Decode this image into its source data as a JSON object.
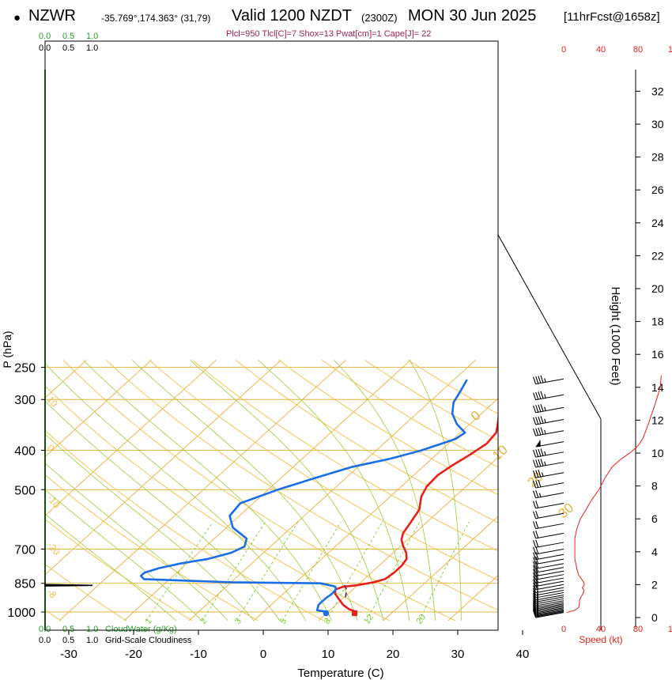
{
  "header": {
    "bullet": "●",
    "station": "NZWR",
    "coords": "-35.769°,174.363° (31,79)",
    "valid": "Valid 1200 NZDT",
    "utc": "(2300Z)",
    "date": "MON 30 Jun 2025",
    "forecast": "[11hrFcst@1658z]",
    "params": "Plcl=950 Tlcl[C]=7 Shox=13 Pwat[cm]=1 Cape[J]= 22"
  },
  "colors": {
    "isotherm": "#e9b13a",
    "dry_adiabat": "#f0c040",
    "moist_adiabat": "#a8d04a",
    "mixing_ratio": "#7ccc30",
    "temperature": "#e8201a",
    "dewpoint": "#1a6ee8",
    "parcel": "#701850",
    "wind": "#000000",
    "speed": "#e8201a",
    "cloud": "#2aa02a",
    "params": "#a0205a"
  },
  "chart_data": {
    "type": "line",
    "title": "Valid 1200 NZDT (2300Z) MON 30 Jun 2025",
    "xlabel": "Temperature (C)",
    "ylabel": "P (hPa)",
    "xlim": [
      -34,
      36
    ],
    "x_ticks": [
      -30,
      -20,
      -10,
      0,
      10,
      20,
      30,
      40
    ],
    "x_tick_labels": [
      "-30",
      "-20",
      "-10",
      "0",
      "10",
      "20",
      "30",
      "40"
    ],
    "p_levels": [
      250,
      300,
      400,
      500,
      700,
      850,
      1000
    ],
    "p_tick_labels": [
      "250",
      "300",
      "400",
      "500",
      "700",
      "850",
      "1000"
    ],
    "height_axis": {
      "label": "Height (1000 Feet)",
      "ticks": [
        0,
        2,
        4,
        6,
        8,
        10,
        12,
        14,
        16,
        18,
        20,
        22,
        24,
        26,
        28,
        30,
        32
      ],
      "tick_labels": [
        "0",
        "2",
        "4",
        "6",
        "8",
        "10",
        "12",
        "14",
        "16",
        "18",
        "20",
        "22",
        "24",
        "26",
        "28",
        "30",
        "32"
      ]
    },
    "isotherm_temps": [
      -120,
      -110,
      -100,
      -90,
      -80,
      -70,
      -60,
      -50,
      -40,
      -30,
      -20,
      -10,
      0,
      10,
      20,
      30
    ],
    "isotherm_labels": [
      {
        "text": "0",
        "t": 0,
        "p": 340
      },
      {
        "text": "10",
        "t": 10,
        "p": 425
      },
      {
        "text": "20",
        "t": 20,
        "p": 495
      },
      {
        "text": "30",
        "t": 30,
        "p": 590
      }
    ],
    "dry_adiabat_thetas": [
      240,
      250,
      260,
      270,
      280,
      290,
      300,
      310,
      320,
      330,
      340,
      350,
      360,
      370,
      380
    ],
    "dry_adiabat_labels": [
      {
        "text": "10",
        "t": -33,
        "p": 300
      },
      {
        "text": "0",
        "t": -33,
        "p": 395
      },
      {
        "text": "-10",
        "t": -33,
        "p": 525
      },
      {
        "text": "-20",
        "t": -33,
        "p": 685
      },
      {
        "text": "-8",
        "t": -33,
        "p": 895
      }
    ],
    "moist_adiabat_thetas": [
      -12,
      -8,
      -4,
      0,
      4,
      8,
      12,
      16,
      20,
      24,
      28,
      32
    ],
    "mixing_ratios": [
      1,
      2,
      3,
      5,
      8,
      12,
      20
    ],
    "mixing_ratio_labels": [
      "1",
      "2",
      "3",
      "5",
      "8",
      "12",
      "20"
    ],
    "series": [
      {
        "name": "Temperature",
        "pressure": [
          1000,
          985,
          960,
          930,
          900,
          880,
          866,
          860,
          845,
          830,
          800,
          770,
          740,
          715,
          690,
          665,
          640,
          600,
          560,
          520,
          490,
          460,
          435,
          410,
          385,
          362,
          345,
          325,
          305,
          285,
          268
        ],
        "temperature": [
          14.5,
          12.8,
          11.1,
          9.5,
          7.9,
          7.3,
          8.1,
          9.8,
          12.0,
          13.2,
          13.5,
          13.5,
          13.1,
          12.0,
          10.5,
          9.1,
          8.2,
          7.5,
          6.7,
          4.8,
          3.9,
          3.7,
          4.3,
          5.2,
          5.9,
          5.5,
          4.3,
          2.7,
          0.9,
          -0.6,
          -0.7
        ]
      },
      {
        "name": "Dewpoint",
        "pressure": [
          1000,
          990,
          960,
          925,
          905,
          880,
          866,
          860,
          850,
          845,
          830,
          815,
          800,
          780,
          760,
          740,
          715,
          690,
          660,
          620,
          580,
          540,
          500,
          470,
          440,
          420,
          400,
          375,
          362,
          345,
          325,
          305,
          285,
          268
        ],
        "temperature": [
          10.0,
          8.0,
          7.3,
          7.3,
          7.5,
          7.4,
          6.8,
          5.8,
          4.0,
          -10.0,
          -24.0,
          -25.0,
          -25.0,
          -23.5,
          -21.0,
          -17.5,
          -15.0,
          -14.0,
          -15.0,
          -19.0,
          -21.5,
          -22.0,
          -18.5,
          -15.0,
          -11.0,
          -6.5,
          -3.0,
          0.3,
          0.7,
          -2.0,
          -4.5,
          -6.2,
          -7.1,
          -8.0
        ]
      },
      {
        "name": "Parcel",
        "pressure": [
          920,
          880,
          855
        ],
        "temperature": [
          10.2,
          9.0,
          7.8
        ]
      }
    ],
    "markers": [
      {
        "name": "surface-temperature-marker",
        "t": 14.3,
        "p": 1007,
        "shape": "square"
      },
      {
        "name": "surface-dewpoint-marker",
        "t": 9.9,
        "p": 1007,
        "shape": "circle"
      }
    ],
    "winds": {
      "pressure": [
        267,
        292,
        314,
        336,
        358,
        381,
        404,
        428,
        454,
        481,
        509,
        540,
        572,
        606,
        640,
        674,
        700,
        722,
        741,
        760,
        777,
        793,
        809,
        825,
        840,
        856,
        871,
        884,
        896,
        908,
        918,
        928,
        938,
        947,
        955,
        962,
        969,
        976,
        982,
        988,
        993,
        998,
        1003
      ],
      "speed_kt": [
        45,
        45,
        45,
        45,
        45,
        50,
        45,
        45,
        35,
        30,
        25,
        20,
        20,
        20,
        20,
        20,
        20,
        20,
        20,
        20,
        20,
        20,
        20,
        20,
        20,
        20,
        20,
        15,
        15,
        15,
        15,
        15,
        15,
        15,
        15,
        15,
        15,
        15,
        15,
        15,
        15,
        15,
        15
      ]
    },
    "speed_profile": {
      "label": "Speed (kt)",
      "xlim": [
        0,
        120
      ],
      "ticks": [
        0,
        40,
        80,
        120
      ],
      "tick_labels": [
        "0",
        "40",
        "80",
        "120"
      ],
      "pressure": [
        1003,
        990,
        975,
        955,
        935,
        915,
        900,
        885,
        872,
        860,
        848,
        835,
        810,
        780,
        740,
        700,
        660,
        625,
        590,
        560,
        530,
        500,
        470,
        440,
        420,
        405,
        390,
        375,
        360,
        340,
        320,
        300,
        280,
        262
      ],
      "speed": [
        3,
        12,
        16,
        17,
        17,
        19,
        21,
        22,
        20,
        22,
        22,
        20,
        16,
        14,
        12,
        12,
        12,
        14,
        18,
        24,
        30,
        38,
        44,
        52,
        62,
        72,
        80,
        85,
        88,
        92,
        96,
        100,
        104,
        105
      ]
    },
    "cloud_legend": {
      "water_label": "CloudWater (g/Kg)",
      "cloudiness_label": "Grid-Scale Cloudiness",
      "ticks": [
        "0.0",
        "0.5",
        "1.0"
      ],
      "tick_values": [
        0.0,
        0.5,
        1.0
      ]
    },
    "cloud_profile": {
      "pressure": [
        863,
        860,
        856
      ],
      "cloudiness": [
        0.0,
        0.5,
        0.0
      ]
    }
  }
}
